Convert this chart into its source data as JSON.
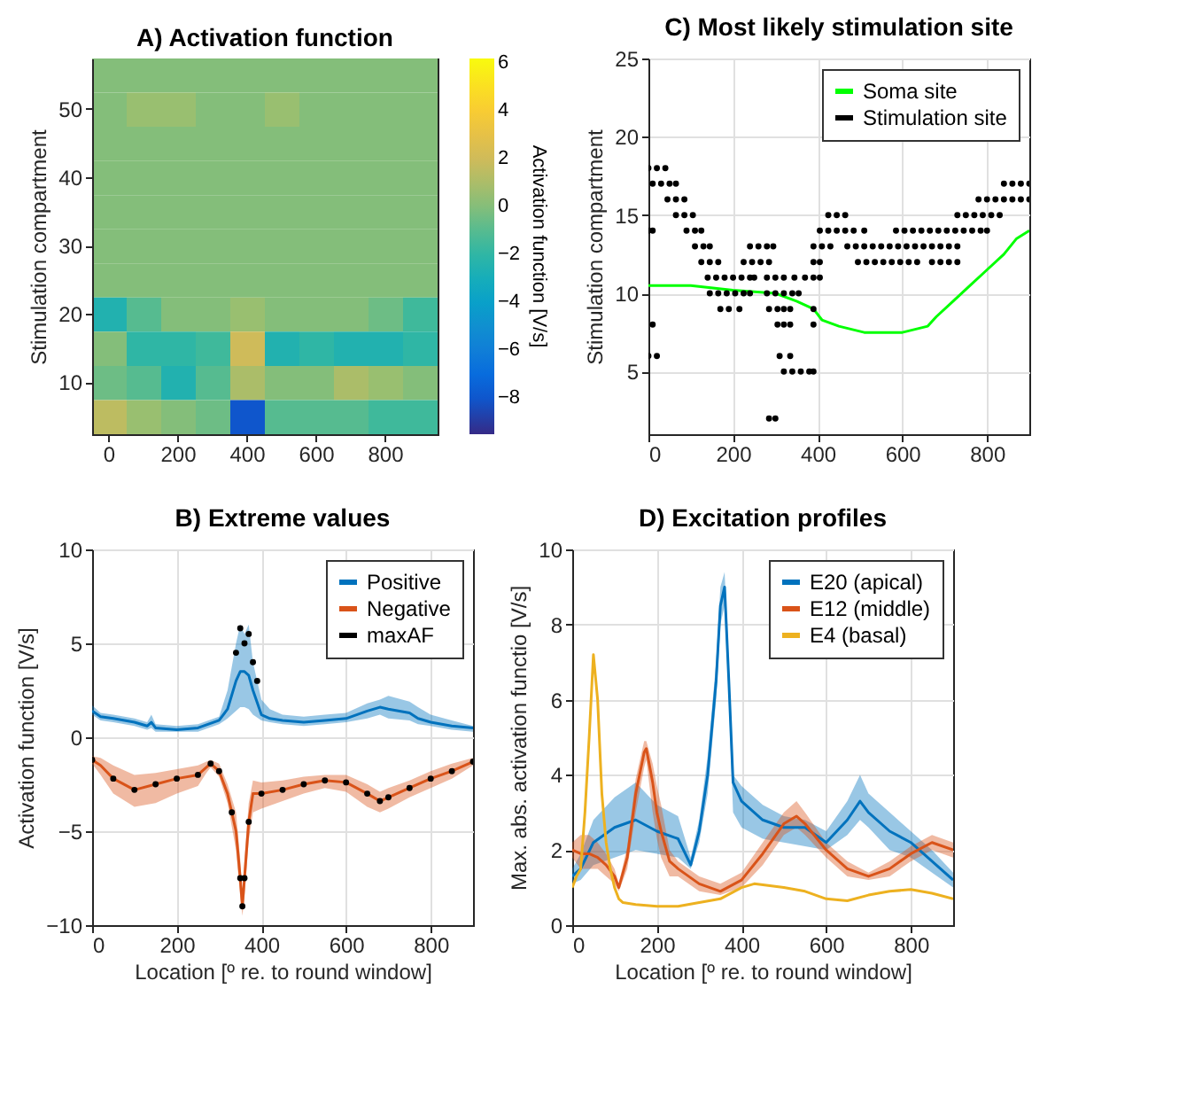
{
  "chart_data": [
    {
      "type": "heatmap",
      "title": "A) Activation function",
      "ylabel": "Stimulation compartment",
      "clabel": "Activation function [V/s]",
      "categories": [
        "0",
        null,
        "200",
        null,
        "400",
        null,
        "600",
        null,
        "800",
        null
      ],
      "y_categories": [
        null,
        "50",
        null,
        "40",
        null,
        "30",
        null,
        "20",
        null,
        "10",
        null
      ],
      "clim": [
        -9.5,
        6.2
      ],
      "cticks": [
        6,
        4,
        2,
        0,
        -2,
        -4,
        -6,
        -8
      ],
      "cells": [
        [
          0,
          0,
          0,
          0,
          0,
          0,
          0,
          0,
          0,
          0
        ],
        [
          0,
          0.5,
          0.5,
          0,
          0,
          0.5,
          0,
          0,
          0,
          0
        ],
        [
          0,
          0,
          0,
          0,
          0,
          0,
          0,
          0,
          0,
          0
        ],
        [
          0,
          0,
          0,
          0,
          0,
          0,
          0,
          0,
          0,
          0
        ],
        [
          0,
          0,
          0,
          0,
          0,
          0,
          0,
          0,
          0,
          0
        ],
        [
          0,
          0,
          0,
          0,
          0,
          0,
          0,
          0,
          0,
          0
        ],
        [
          0,
          0,
          0,
          0,
          0,
          0,
          0,
          0,
          0,
          0
        ],
        [
          -2.5,
          -1,
          0,
          0,
          0.5,
          0,
          0,
          0,
          -0.5,
          -1.5
        ],
        [
          0,
          -2,
          -2,
          -1.5,
          2,
          -2.5,
          -2,
          -2.5,
          -2.5,
          -2
        ],
        [
          -0.5,
          -1,
          -2.5,
          -1,
          1,
          0,
          0,
          1,
          0.5,
          0
        ],
        [
          1.5,
          0.5,
          0,
          -0.5,
          -8,
          -1,
          -1,
          -1,
          -1.5,
          -1.5
        ]
      ]
    },
    {
      "type": "line",
      "title": "C) Most likely stimulation site",
      "ylabel": "Stimulation compartment",
      "xlim": [
        0,
        900
      ],
      "xticks": [
        0,
        200,
        400,
        600,
        800
      ],
      "ylim": [
        1,
        25
      ],
      "yticks": [
        5,
        10,
        15,
        20,
        25
      ],
      "grid": true,
      "legend": "top right",
      "series": [
        {
          "name": "Soma site",
          "type": "line",
          "color": "#00ff00",
          "x": [
            0,
            100,
            200,
            300,
            350,
            390,
            410,
            450,
            510,
            600,
            660,
            680,
            720,
            760,
            800,
            840,
            870,
            900
          ],
          "values": [
            10.5,
            10.5,
            10.2,
            10,
            9.5,
            9,
            8.3,
            7.9,
            7.5,
            7.5,
            7.9,
            8.5,
            9.5,
            10.5,
            11.5,
            12.5,
            13.5,
            14
          ]
        },
        {
          "name": "Stimulation site",
          "type": "scatter",
          "color": "#000000",
          "x": [
            0,
            20,
            40,
            10,
            30,
            50,
            65,
            840,
            860,
            880,
            900,
            45,
            65,
            85,
            780,
            800,
            820,
            840,
            860,
            880,
            900,
            65,
            85,
            105,
            425,
            445,
            465,
            730,
            750,
            770,
            790,
            810,
            830,
            0,
            10,
            90,
            110,
            125,
            405,
            425,
            445,
            465,
            485,
            510,
            585,
            605,
            625,
            645,
            665,
            685,
            705,
            725,
            745,
            765,
            785,
            800,
            110,
            130,
            145,
            240,
            260,
            280,
            295,
            390,
            410,
            430,
            470,
            490,
            510,
            530,
            550,
            570,
            590,
            610,
            630,
            650,
            670,
            690,
            710,
            730,
            125,
            145,
            165,
            225,
            245,
            265,
            285,
            390,
            405,
            495,
            515,
            535,
            555,
            575,
            595,
            615,
            635,
            670,
            690,
            710,
            730,
            140,
            160,
            180,
            200,
            220,
            240,
            250,
            280,
            300,
            320,
            345,
            370,
            390,
            405,
            145,
            165,
            185,
            205,
            225,
            240,
            280,
            300,
            320,
            340,
            355,
            170,
            190,
            215,
            285,
            305,
            320,
            335,
            390,
            10,
            305,
            320,
            335,
            390,
            0,
            20,
            310,
            335,
            320,
            340,
            360,
            380,
            390,
            285,
            300
          ],
          "values": [
            18,
            18,
            18,
            17,
            17,
            17,
            17,
            17,
            17,
            17,
            17,
            16,
            16,
            16,
            16,
            16,
            16,
            16,
            16,
            16,
            16,
            15,
            15,
            15,
            15,
            15,
            15,
            15,
            15,
            15,
            15,
            15,
            15,
            14,
            14,
            14,
            14,
            14,
            14,
            14,
            14,
            14,
            14,
            14,
            14,
            14,
            14,
            14,
            14,
            14,
            14,
            14,
            14,
            14,
            14,
            14,
            13,
            13,
            13,
            13,
            13,
            13,
            13,
            13,
            13,
            13,
            13,
            13,
            13,
            13,
            13,
            13,
            13,
            13,
            13,
            13,
            13,
            13,
            13,
            13,
            12,
            12,
            12,
            12,
            12,
            12,
            12,
            12,
            12,
            12,
            12,
            12,
            12,
            12,
            12,
            12,
            12,
            12,
            12,
            12,
            12,
            11,
            11,
            11,
            11,
            11,
            11,
            11,
            11,
            11,
            11,
            11,
            11,
            11,
            11,
            10,
            10,
            10,
            10,
            10,
            10,
            10,
            10,
            10,
            10,
            10,
            9,
            9,
            9,
            9,
            9,
            9,
            9,
            9,
            8,
            8,
            8,
            8,
            8,
            6,
            6,
            6,
            6,
            5,
            5,
            5,
            5,
            5,
            2,
            2
          ]
        }
      ]
    },
    {
      "type": "line",
      "title": "B) Extreme values",
      "xlabel": "Location [º re. to round window]",
      "ylabel": "Activation function [V/s]",
      "xlim": [
        0,
        900
      ],
      "xticks": [
        0,
        200,
        400,
        600,
        800
      ],
      "ylim": [
        -10,
        10
      ],
      "yticks": [
        -10,
        -5,
        0,
        5,
        10
      ],
      "grid": true,
      "legend": "top right",
      "series": [
        {
          "name": "Positive",
          "color": "#0072bd",
          "x": [
            0,
            20,
            50,
            100,
            130,
            140,
            150,
            200,
            250,
            300,
            320,
            340,
            350,
            360,
            370,
            380,
            400,
            420,
            450,
            500,
            550,
            600,
            650,
            680,
            700,
            750,
            770,
            800,
            850,
            900
          ],
          "values": [
            1.4,
            1.1,
            1.0,
            0.8,
            0.6,
            0.8,
            0.5,
            0.4,
            0.5,
            0.9,
            1.5,
            3,
            3.5,
            3.5,
            3.3,
            2.5,
            1.2,
            1.0,
            0.9,
            0.8,
            0.9,
            1.0,
            1.4,
            1.6,
            1.5,
            1.3,
            1.0,
            0.8,
            0.6,
            0.5
          ],
          "lower": [
            1.2,
            0.9,
            0.8,
            0.6,
            0.4,
            0.5,
            0.3,
            0.3,
            0.3,
            0.7,
            1.0,
            1.4,
            1.6,
            1.6,
            1.5,
            1.2,
            0.9,
            0.8,
            0.7,
            0.6,
            0.7,
            0.8,
            1.0,
            1.2,
            1.0,
            0.9,
            0.7,
            0.6,
            0.4,
            0.3
          ],
          "upper": [
            1.7,
            1.3,
            1.2,
            1.0,
            0.8,
            1.2,
            0.7,
            0.6,
            0.7,
            1.1,
            2.5,
            5,
            6,
            5.5,
            6,
            4,
            2,
            1.5,
            1.2,
            1.1,
            1.2,
            1.3,
            1.8,
            2,
            2.2,
            1.9,
            1.6,
            1.2,
            0.9,
            0.6
          ]
        },
        {
          "name": "Negative",
          "color": "#d95319",
          "x": [
            0,
            20,
            50,
            100,
            150,
            200,
            250,
            270,
            280,
            300,
            320,
            340,
            350,
            355,
            360,
            370,
            380,
            400,
            450,
            500,
            550,
            600,
            650,
            680,
            700,
            750,
            800,
            850,
            900
          ],
          "values": [
            -1.2,
            -1.5,
            -2.2,
            -2.8,
            -2.5,
            -2.2,
            -2,
            -1.6,
            -1.4,
            -1.8,
            -3,
            -5,
            -7.5,
            -9,
            -7.5,
            -4.5,
            -3,
            -3,
            -2.8,
            -2.5,
            -2.3,
            -2.4,
            -3,
            -3.4,
            -3.2,
            -2.7,
            -2.2,
            -1.8,
            -1.3
          ],
          "lower": [
            -1.4,
            -2,
            -3,
            -3.7,
            -3.5,
            -3,
            -2.6,
            -1.9,
            -1.6,
            -2.1,
            -3.5,
            -6,
            -8.5,
            -9.5,
            -8.5,
            -5.5,
            -4,
            -3.8,
            -3.4,
            -3,
            -2.7,
            -2.9,
            -3.7,
            -4,
            -3.8,
            -3.2,
            -2.7,
            -2.2,
            -1.5
          ],
          "upper": [
            -1.0,
            -1.1,
            -1.5,
            -2,
            -1.9,
            -1.7,
            -1.5,
            -1.3,
            -1.2,
            -1.4,
            -2.5,
            -4,
            -6.5,
            -8.5,
            -6.5,
            -3.5,
            -2.3,
            -2.4,
            -2.3,
            -2.1,
            -2,
            -2,
            -2.5,
            -2.9,
            -2.7,
            -2.3,
            -1.8,
            -1.4,
            -1.1
          ]
        },
        {
          "name": "maxAF",
          "type": "scatter",
          "color": "#000000",
          "x": [
            0,
            50,
            100,
            150,
            200,
            250,
            280,
            300,
            330,
            350,
            355,
            360,
            370,
            400,
            450,
            500,
            550,
            600,
            650,
            680,
            700,
            750,
            800,
            850,
            900,
            340,
            350,
            360,
            370,
            380,
            390
          ],
          "values": [
            -1.2,
            -2.2,
            -2.8,
            -2.5,
            -2.2,
            -2,
            -1.4,
            -1.8,
            -4,
            -7.5,
            -9,
            -7.5,
            -4.5,
            -3,
            -2.8,
            -2.5,
            -2.3,
            -2.4,
            -3,
            -3.4,
            -3.2,
            -2.7,
            -2.2,
            -1.8,
            -1.3,
            4.5,
            5.8,
            5,
            5.5,
            4,
            3
          ]
        }
      ]
    },
    {
      "type": "line",
      "title": "D) Excitation profiles",
      "xlabel": "Location [º re. to round window]",
      "ylabel": "Max. abs. activation functio [V/s]",
      "xlim": [
        0,
        900
      ],
      "xticks": [
        0,
        200,
        400,
        600,
        800
      ],
      "ylim": [
        0,
        10
      ],
      "yticks": [
        0,
        2,
        4,
        6,
        8,
        10
      ],
      "grid": true,
      "legend": "top right",
      "series": [
        {
          "name": "E20 (apical)",
          "color": "#0072bd",
          "x": [
            0,
            20,
            50,
            100,
            150,
            200,
            250,
            280,
            300,
            320,
            340,
            350,
            360,
            370,
            380,
            400,
            450,
            500,
            550,
            600,
            650,
            680,
            700,
            750,
            800,
            850,
            900
          ],
          "values": [
            1.3,
            1.5,
            2.2,
            2.6,
            2.8,
            2.5,
            2.3,
            1.6,
            2.5,
            4,
            6.5,
            8.5,
            9,
            6.5,
            3.8,
            3.3,
            2.8,
            2.6,
            2.6,
            2.2,
            2.8,
            3.3,
            3.0,
            2.5,
            2.2,
            1.7,
            1.2
          ],
          "lower": [
            1.1,
            1.2,
            1.6,
            1.8,
            2.0,
            1.9,
            1.8,
            1.5,
            2.2,
            3.5,
            6,
            8,
            8.5,
            6,
            3,
            2.6,
            2.3,
            2.2,
            2.1,
            2.0,
            2.4,
            2.8,
            2.6,
            2.0,
            1.8,
            1.4,
            1.0
          ],
          "upper": [
            1.5,
            1.9,
            2.8,
            3.4,
            3.8,
            3.2,
            2.9,
            1.8,
            2.8,
            4.5,
            7,
            9,
            9.4,
            7,
            4,
            3.7,
            3.2,
            2.9,
            2.8,
            2.5,
            3.3,
            4,
            3.5,
            3,
            2.5,
            2,
            1.4
          ]
        },
        {
          "name": "E12 (middle)",
          "color": "#d95319",
          "x": [
            0,
            20,
            40,
            60,
            80,
            100,
            110,
            130,
            150,
            170,
            175,
            190,
            200,
            210,
            230,
            250,
            300,
            350,
            400,
            450,
            500,
            530,
            550,
            600,
            650,
            700,
            750,
            800,
            850,
            900
          ],
          "values": [
            2.0,
            1.9,
            1.9,
            1.8,
            1.6,
            1.3,
            1.0,
            1.8,
            3.5,
            4.6,
            4.7,
            3.8,
            3,
            2.5,
            1.7,
            1.5,
            1.1,
            0.9,
            1.2,
            1.9,
            2.7,
            2.9,
            2.7,
            2.0,
            1.5,
            1.3,
            1.5,
            1.9,
            2.2,
            2.0
          ],
          "lower": [
            1.8,
            1.5,
            1.5,
            1.5,
            1.3,
            1.1,
            0.9,
            1.5,
            3.0,
            4.2,
            4.4,
            3,
            2.3,
            1.8,
            1.3,
            1.3,
            0.9,
            0.8,
            1.0,
            1.6,
            2.4,
            2.6,
            2.4,
            1.8,
            1.3,
            1.2,
            1.3,
            1.7,
            2.0,
            1.8
          ],
          "upper": [
            2.2,
            2.4,
            2.4,
            2.2,
            1.9,
            1.5,
            1.1,
            2.1,
            3.9,
            4.9,
            4.9,
            4.3,
            3.7,
            3.2,
            2.0,
            1.7,
            1.3,
            1.1,
            1.4,
            2.2,
            3.0,
            3.3,
            3.0,
            2.2,
            1.7,
            1.4,
            1.7,
            2.1,
            2.4,
            2.2
          ]
        },
        {
          "name": "E4 (basal)",
          "color": "#edb120",
          "x": [
            0,
            10,
            20,
            30,
            40,
            50,
            60,
            70,
            80,
            90,
            100,
            110,
            120,
            150,
            200,
            250,
            300,
            350,
            400,
            430,
            500,
            550,
            600,
            650,
            700,
            750,
            800,
            850,
            900
          ],
          "values": [
            1.0,
            1.3,
            1.5,
            3,
            5,
            7.2,
            6,
            3.5,
            2.2,
            1.5,
            1.0,
            0.7,
            0.6,
            0.55,
            0.5,
            0.5,
            0.6,
            0.7,
            1.0,
            1.1,
            1.0,
            0.9,
            0.7,
            0.65,
            0.8,
            0.9,
            0.95,
            0.85,
            0.7
          ]
        }
      ]
    }
  ]
}
